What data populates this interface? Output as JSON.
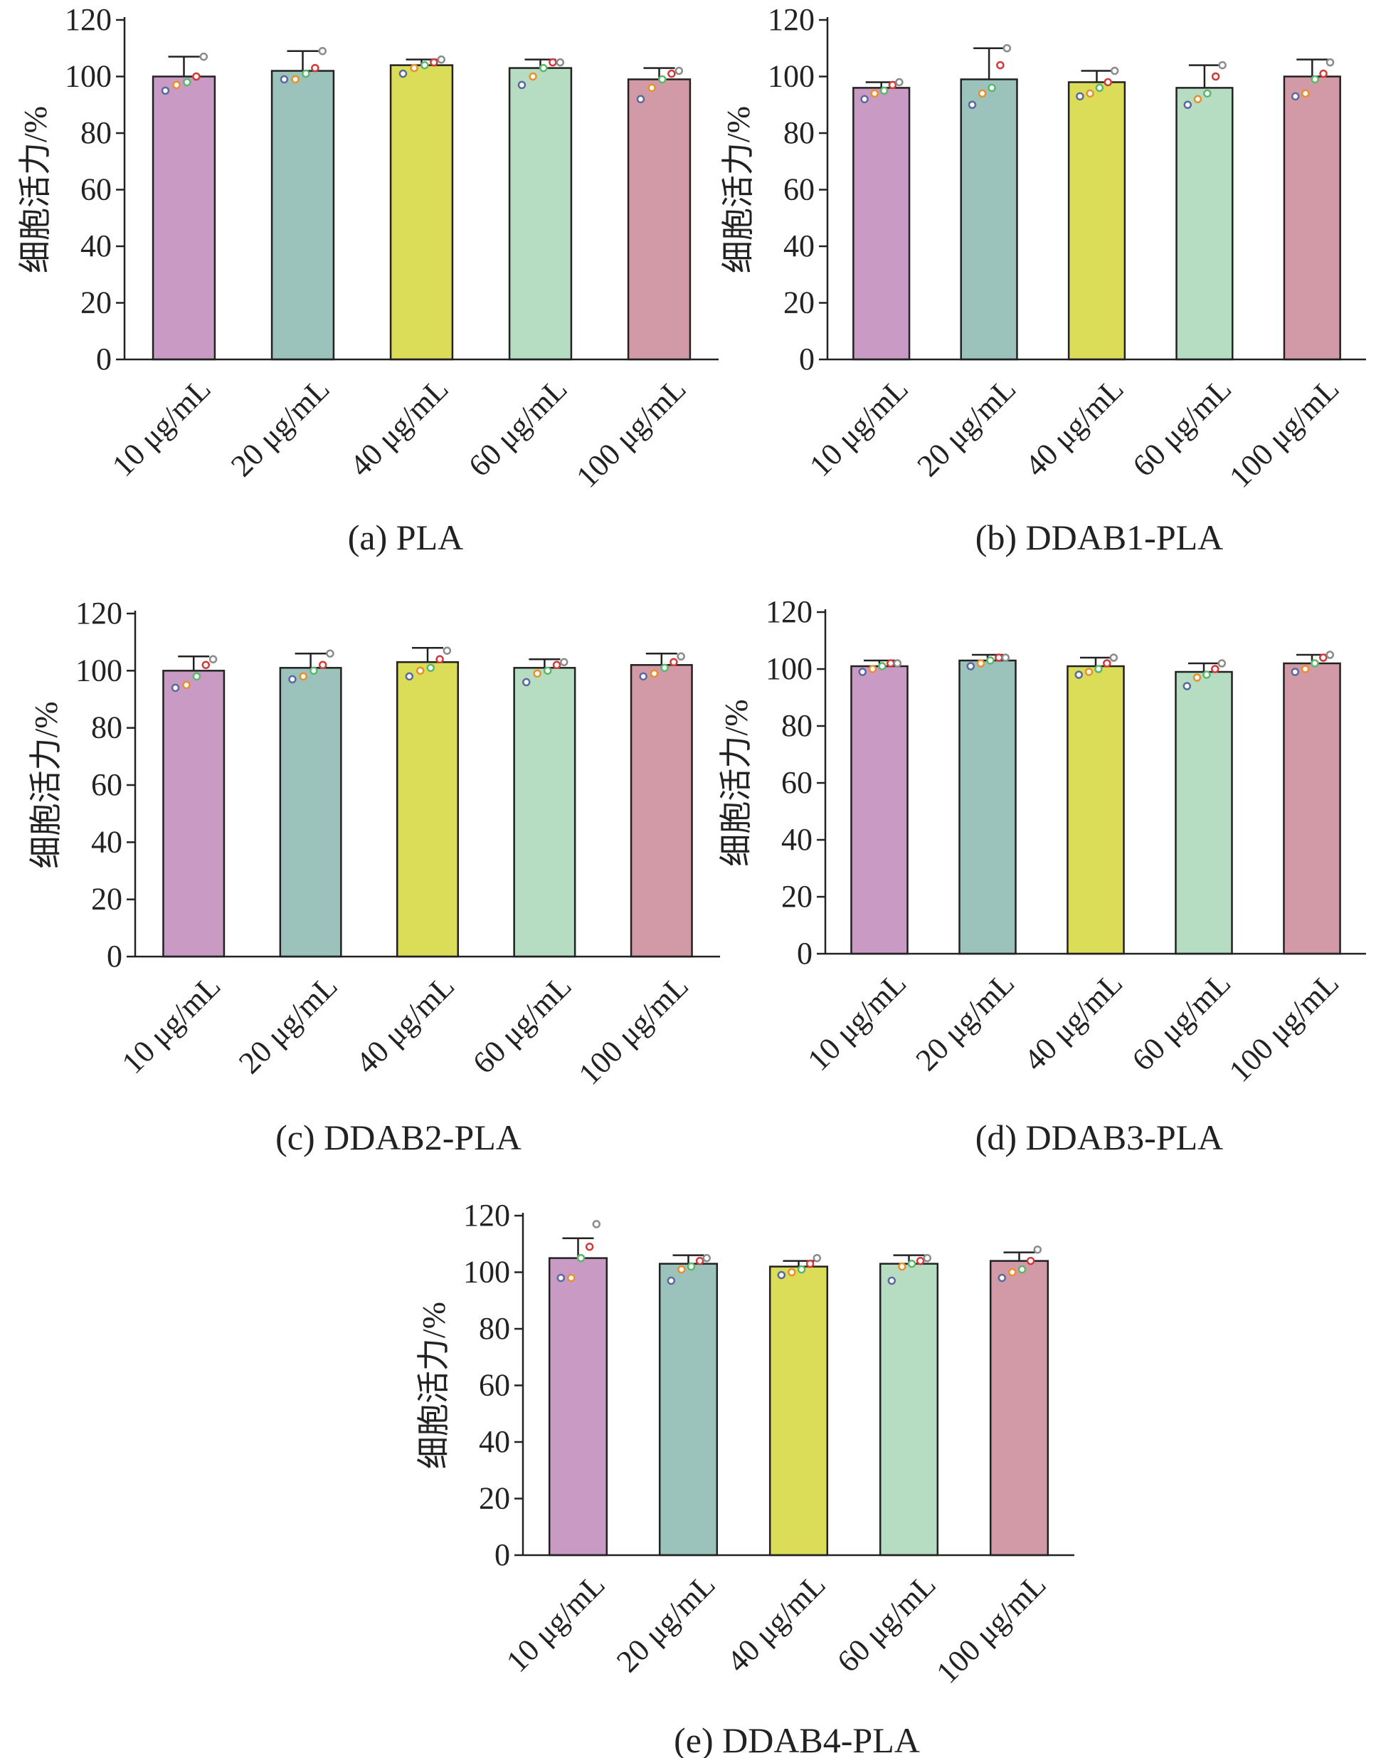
{
  "colors": {
    "bar_fill": [
      "#c89ac4",
      "#9bc2bb",
      "#dbdc58",
      "#b6dcc2",
      "#d29aa6"
    ],
    "point_colors": [
      "#5a6a9e",
      "#e8902a",
      "#5ab86a",
      "#d23a3a",
      "#8b8b8b"
    ],
    "axis": "#222222"
  },
  "chart_data": [
    {
      "type": "bar",
      "caption": "(a) PLA",
      "ylabel": "细胞活力/%",
      "categories": [
        "10 μg/mL",
        "20 μg/mL",
        "40 μg/mL",
        "60 μg/mL",
        "100 μg/mL"
      ],
      "values": [
        100,
        102,
        104,
        103,
        99
      ],
      "errors": [
        7,
        7,
        2,
        3,
        4
      ],
      "points": [
        [
          95,
          97,
          98,
          100,
          107
        ],
        [
          99,
          99,
          101,
          103,
          109
        ],
        [
          101,
          103,
          104,
          105,
          106
        ],
        [
          97,
          100,
          103,
          105,
          105
        ],
        [
          92,
          96,
          99,
          101,
          102
        ]
      ],
      "ylim": [
        0,
        120
      ],
      "yticks": [
        0,
        20,
        40,
        60,
        80,
        100,
        120
      ]
    },
    {
      "type": "bar",
      "caption": "(b) DDAB1-PLA",
      "ylabel": "细胞活力/%",
      "categories": [
        "10 μg/mL",
        "20 μg/mL",
        "40 μg/mL",
        "60 μg/mL",
        "100 μg/mL"
      ],
      "values": [
        96,
        99,
        98,
        96,
        100
      ],
      "errors": [
        2,
        11,
        4,
        8,
        6
      ],
      "points": [
        [
          92,
          94,
          95,
          97,
          98
        ],
        [
          90,
          94,
          96,
          104,
          110
        ],
        [
          93,
          94,
          96,
          98,
          102
        ],
        [
          90,
          92,
          94,
          100,
          104
        ],
        [
          93,
          94,
          99,
          101,
          105
        ]
      ],
      "ylim": [
        0,
        120
      ],
      "yticks": [
        0,
        20,
        40,
        60,
        80,
        100,
        120
      ]
    },
    {
      "type": "bar",
      "caption": "(c) DDAB2-PLA",
      "ylabel": "细胞活力/%",
      "categories": [
        "10 μg/mL",
        "20 μg/mL",
        "40 μg/mL",
        "60 μg/mL",
        "100 μg/mL"
      ],
      "values": [
        100,
        101,
        103,
        101,
        102
      ],
      "errors": [
        5,
        5,
        5,
        3,
        4
      ],
      "points": [
        [
          94,
          95,
          98,
          102,
          104
        ],
        [
          97,
          98,
          100,
          102,
          106
        ],
        [
          98,
          100,
          101,
          104,
          107
        ],
        [
          96,
          99,
          100,
          102,
          103
        ],
        [
          98,
          99,
          101,
          103,
          105
        ]
      ],
      "ylim": [
        0,
        120
      ],
      "yticks": [
        0,
        20,
        40,
        60,
        80,
        100,
        120
      ]
    },
    {
      "type": "bar",
      "caption": "(d) DDAB3-PLA",
      "ylabel": "细胞活力/%",
      "categories": [
        "10 μg/mL",
        "20 μg/mL",
        "40 μg/mL",
        "60 μg/mL",
        "100 μg/mL"
      ],
      "values": [
        101,
        103,
        101,
        99,
        102
      ],
      "errors": [
        2,
        2,
        3,
        3,
        3
      ],
      "points": [
        [
          99,
          100,
          101,
          102,
          102
        ],
        [
          101,
          102,
          103,
          104,
          104
        ],
        [
          98,
          99,
          100,
          102,
          104
        ],
        [
          94,
          97,
          98,
          100,
          102
        ],
        [
          99,
          100,
          102,
          104,
          105
        ]
      ],
      "ylim": [
        0,
        120
      ],
      "yticks": [
        0,
        20,
        40,
        60,
        80,
        100,
        120
      ]
    },
    {
      "type": "bar",
      "caption": "(e) DDAB4-PLA",
      "ylabel": "细胞活力/%",
      "categories": [
        "10 μg/mL",
        "20 μg/mL",
        "40 μg/mL",
        "60 μg/mL",
        "100 μg/mL"
      ],
      "values": [
        105,
        103,
        102,
        103,
        104
      ],
      "errors": [
        7,
        3,
        2,
        3,
        3
      ],
      "points": [
        [
          98,
          98,
          105,
          109,
          117
        ],
        [
          97,
          101,
          102,
          104,
          105
        ],
        [
          99,
          100,
          101,
          103,
          105
        ],
        [
          97,
          102,
          103,
          104,
          105
        ],
        [
          98,
          100,
          101,
          104,
          108
        ]
      ],
      "ylim": [
        0,
        120
      ],
      "yticks": [
        0,
        20,
        40,
        60,
        80,
        100,
        120
      ]
    }
  ]
}
